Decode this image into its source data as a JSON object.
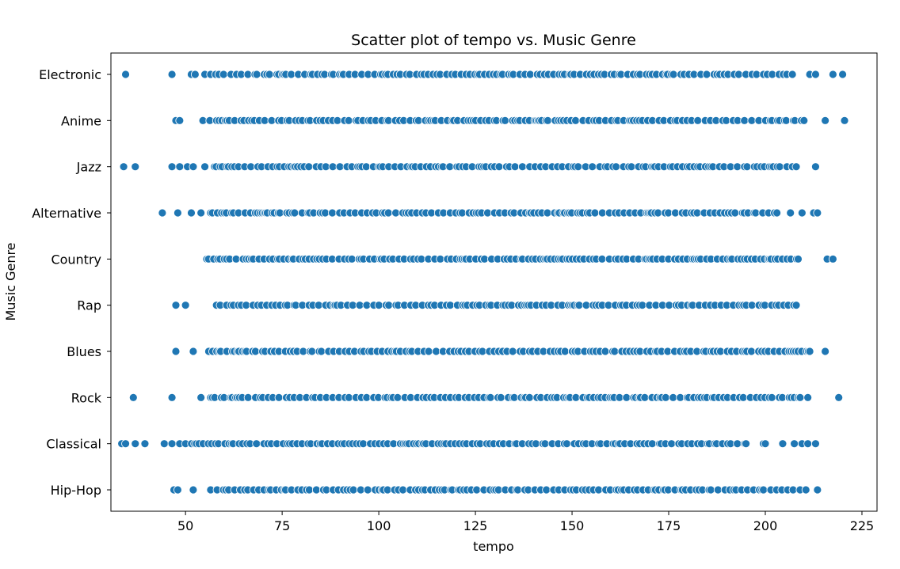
{
  "chart_data": {
    "type": "scatter",
    "title": "Scatter plot of tempo vs. Music Genre",
    "xlabel": "tempo",
    "ylabel": "Music Genre",
    "xlim": [
      30.7,
      228.9
    ],
    "xticks": [
      50,
      75,
      100,
      125,
      150,
      175,
      200,
      225
    ],
    "categories": [
      "Electronic",
      "Anime",
      "Jazz",
      "Alternative",
      "Country",
      "Rap",
      "Blues",
      "Rock",
      "Classical",
      "Hip-Hop"
    ],
    "grid": false,
    "legend": "none",
    "marker_color": "#1f77b4",
    "marker_edge_color": "#ffffff",
    "series": [
      {
        "category": "Electronic",
        "sparse": [
          34.5,
          46.5,
          51.5,
          52.5,
          55.0
        ],
        "dense_range": [
          56.5,
          207.0
        ],
        "tail": [
          211.5,
          213.0,
          217.5,
          220.0
        ]
      },
      {
        "category": "Anime",
        "sparse": [
          47.5,
          48.5
        ],
        "dense_range": [
          54.5,
          210.0
        ],
        "tail": [
          215.5,
          220.5
        ]
      },
      {
        "category": "Jazz",
        "sparse": [
          34.0,
          37.0,
          46.5,
          48.5,
          50.5,
          52.0,
          55.0
        ],
        "dense_range": [
          57.5,
          208.0
        ],
        "tail": [
          213.0
        ]
      },
      {
        "category": "Alternative",
        "sparse": [
          44.0,
          48.0,
          51.5,
          54.0
        ],
        "dense_range": [
          56.5,
          203.0
        ],
        "tail": [
          206.5,
          209.5,
          212.5,
          213.5
        ]
      },
      {
        "category": "Country",
        "sparse": [],
        "dense_range": [
          55.5,
          208.5
        ],
        "tail": [
          216.0,
          217.5
        ]
      },
      {
        "category": "Rap",
        "sparse": [
          47.5,
          50.0
        ],
        "dense_range": [
          58.0,
          208.0
        ],
        "tail": []
      },
      {
        "category": "Blues",
        "sparse": [
          47.5,
          52.0
        ],
        "dense_range": [
          56.0,
          211.5
        ],
        "tail": [
          215.5
        ]
      },
      {
        "category": "Rock",
        "sparse": [
          36.5,
          46.5,
          54.0
        ],
        "dense_range": [
          56.5,
          209.0
        ],
        "tail": [
          211.0,
          219.0
        ]
      },
      {
        "category": "Classical",
        "sparse": [
          33.5,
          34.5,
          37.0,
          39.5,
          44.5,
          46.5,
          48.5
        ],
        "dense_range": [
          50.0,
          195.0
        ],
        "tail": [
          199.5,
          200.0,
          204.5,
          207.5,
          209.5,
          211.0,
          213.0
        ]
      },
      {
        "category": "Hip-Hop",
        "sparse": [
          47.0,
          48.0,
          52.0
        ],
        "dense_range": [
          56.5,
          210.5
        ],
        "tail": [
          213.5
        ]
      }
    ]
  }
}
